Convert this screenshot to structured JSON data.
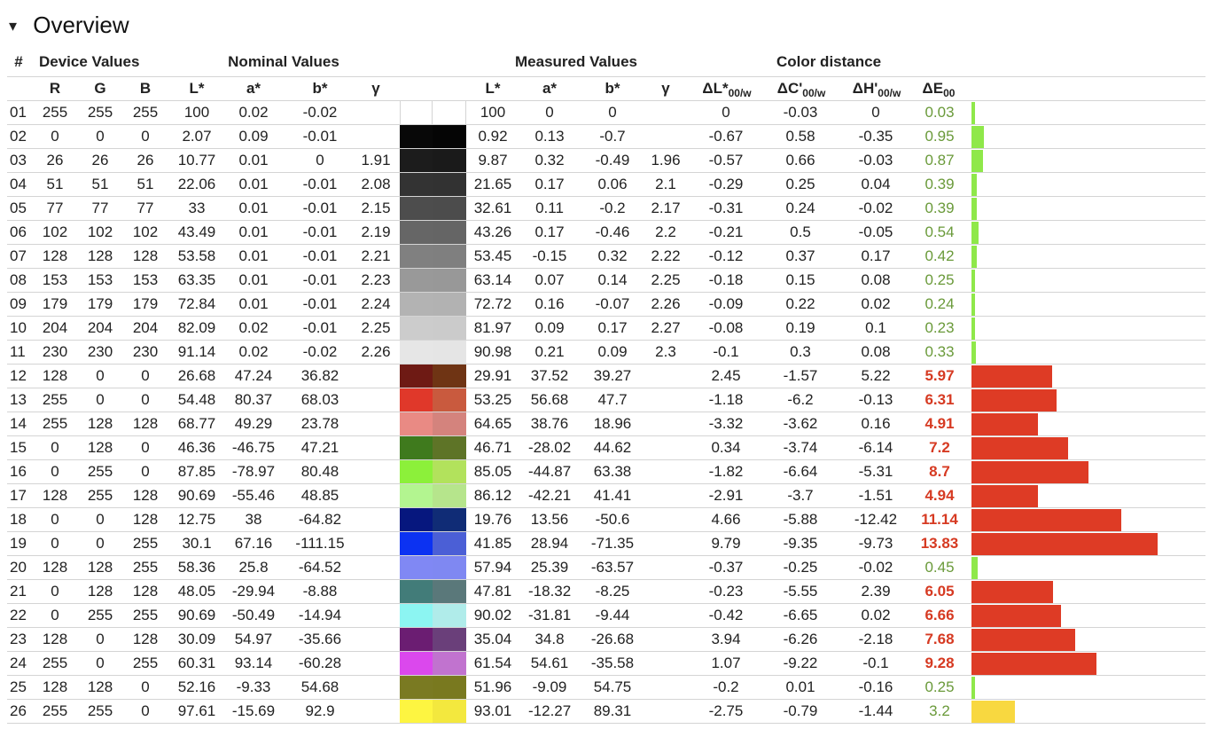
{
  "section": {
    "toggle": "▾",
    "title": "Overview"
  },
  "headers": {
    "num": "#",
    "device": "Device Values",
    "nominal": "Nominal Values",
    "measured": "Measured Values",
    "distance": "Color distance",
    "R": "R",
    "G": "G",
    "B": "B",
    "L": "L*",
    "a": "a*",
    "b": "b*",
    "gamma": "γ",
    "dL_main": "ΔL*",
    "dL_sub": "00/w",
    "dC_main": "ΔC'",
    "dC_sub": "00/w",
    "dH_main": "ΔH'",
    "dH_sub": "00/w",
    "dE_main": "ΔE",
    "dE_sub": "00"
  },
  "colors": {
    "good": "#6a9a3a",
    "bad": "#d63a22",
    "bar_good": "#8fe84a",
    "bar_bad": "#de3b25",
    "bar_warn": "#f8d840"
  },
  "rows": [
    {
      "num": "01",
      "R": "255",
      "G": "255",
      "B": "255",
      "nL": "100",
      "na": "0.02",
      "nb": "-0.02",
      "ng": "",
      "mL": "100",
      "ma": "0",
      "mb": "0",
      "mg": "",
      "dL": "0",
      "dC": "-0.03",
      "dH": "0",
      "dE": "0.03",
      "dEv": 0.03,
      "nom": "#ffffff",
      "meas": "#ffffff",
      "status": "good"
    },
    {
      "num": "02",
      "R": "0",
      "G": "0",
      "B": "0",
      "nL": "2.07",
      "na": "0.09",
      "nb": "-0.01",
      "ng": "",
      "mL": "0.92",
      "ma": "0.13",
      "mb": "-0.7",
      "mg": "",
      "dL": "-0.67",
      "dC": "0.58",
      "dH": "-0.35",
      "dE": "0.95",
      "dEv": 0.95,
      "nom": "#080808",
      "meas": "#050505",
      "status": "good"
    },
    {
      "num": "03",
      "R": "26",
      "G": "26",
      "B": "26",
      "nL": "10.77",
      "na": "0.01",
      "nb": "0",
      "ng": "1.91",
      "mL": "9.87",
      "ma": "0.32",
      "mb": "-0.49",
      "mg": "1.96",
      "dL": "-0.57",
      "dC": "0.66",
      "dH": "-0.03",
      "dE": "0.87",
      "dEv": 0.87,
      "nom": "#1c1c1c",
      "meas": "#1a1a1a",
      "status": "good"
    },
    {
      "num": "04",
      "R": "51",
      "G": "51",
      "B": "51",
      "nL": "22.06",
      "na": "0.01",
      "nb": "-0.01",
      "ng": "2.08",
      "mL": "21.65",
      "ma": "0.17",
      "mb": "0.06",
      "mg": "2.1",
      "dL": "-0.29",
      "dC": "0.25",
      "dH": "0.04",
      "dE": "0.39",
      "dEv": 0.39,
      "nom": "#333333",
      "meas": "#323232",
      "status": "good"
    },
    {
      "num": "05",
      "R": "77",
      "G": "77",
      "B": "77",
      "nL": "33",
      "na": "0.01",
      "nb": "-0.01",
      "ng": "2.15",
      "mL": "32.61",
      "ma": "0.11",
      "mb": "-0.2",
      "mg": "2.17",
      "dL": "-0.31",
      "dC": "0.24",
      "dH": "-0.02",
      "dE": "0.39",
      "dEv": 0.39,
      "nom": "#4d4d4d",
      "meas": "#4c4c4c",
      "status": "good"
    },
    {
      "num": "06",
      "R": "102",
      "G": "102",
      "B": "102",
      "nL": "43.49",
      "na": "0.01",
      "nb": "-0.01",
      "ng": "2.19",
      "mL": "43.26",
      "ma": "0.17",
      "mb": "-0.46",
      "mg": "2.2",
      "dL": "-0.21",
      "dC": "0.5",
      "dH": "-0.05",
      "dE": "0.54",
      "dEv": 0.54,
      "nom": "#666666",
      "meas": "#656565",
      "status": "good"
    },
    {
      "num": "07",
      "R": "128",
      "G": "128",
      "B": "128",
      "nL": "53.58",
      "na": "0.01",
      "nb": "-0.01",
      "ng": "2.21",
      "mL": "53.45",
      "ma": "-0.15",
      "mb": "0.32",
      "mg": "2.22",
      "dL": "-0.12",
      "dC": "0.37",
      "dH": "0.17",
      "dE": "0.42",
      "dEv": 0.42,
      "nom": "#808080",
      "meas": "#7f7f7f",
      "status": "good"
    },
    {
      "num": "08",
      "R": "153",
      "G": "153",
      "B": "153",
      "nL": "63.35",
      "na": "0.01",
      "nb": "-0.01",
      "ng": "2.23",
      "mL": "63.14",
      "ma": "0.07",
      "mb": "0.14",
      "mg": "2.25",
      "dL": "-0.18",
      "dC": "0.15",
      "dH": "0.08",
      "dE": "0.25",
      "dEv": 0.25,
      "nom": "#999999",
      "meas": "#989898",
      "status": "good"
    },
    {
      "num": "09",
      "R": "179",
      "G": "179",
      "B": "179",
      "nL": "72.84",
      "na": "0.01",
      "nb": "-0.01",
      "ng": "2.24",
      "mL": "72.72",
      "ma": "0.16",
      "mb": "-0.07",
      "mg": "2.26",
      "dL": "-0.09",
      "dC": "0.22",
      "dH": "0.02",
      "dE": "0.24",
      "dEv": 0.24,
      "nom": "#b3b3b3",
      "meas": "#b2b2b2",
      "status": "good"
    },
    {
      "num": "10",
      "R": "204",
      "G": "204",
      "B": "204",
      "nL": "82.09",
      "na": "0.02",
      "nb": "-0.01",
      "ng": "2.25",
      "mL": "81.97",
      "ma": "0.09",
      "mb": "0.17",
      "mg": "2.27",
      "dL": "-0.08",
      "dC": "0.19",
      "dH": "0.1",
      "dE": "0.23",
      "dEv": 0.23,
      "nom": "#cccccc",
      "meas": "#cbcbcb",
      "status": "good"
    },
    {
      "num": "11",
      "R": "230",
      "G": "230",
      "B": "230",
      "nL": "91.14",
      "na": "0.02",
      "nb": "-0.02",
      "ng": "2.26",
      "mL": "90.98",
      "ma": "0.21",
      "mb": "0.09",
      "mg": "2.3",
      "dL": "-0.1",
      "dC": "0.3",
      "dH": "0.08",
      "dE": "0.33",
      "dEv": 0.33,
      "nom": "#e6e6e6",
      "meas": "#e5e5e5",
      "status": "good"
    },
    {
      "num": "12",
      "R": "128",
      "G": "0",
      "B": "0",
      "nL": "26.68",
      "na": "47.24",
      "nb": "36.82",
      "ng": "",
      "mL": "29.91",
      "ma": "37.52",
      "mb": "39.27",
      "mg": "",
      "dL": "2.45",
      "dC": "-1.57",
      "dH": "5.22",
      "dE": "5.97",
      "dEv": 5.97,
      "nom": "#6e1a14",
      "meas": "#6f3414",
      "status": "bad"
    },
    {
      "num": "13",
      "R": "255",
      "G": "0",
      "B": "0",
      "nL": "54.48",
      "na": "80.37",
      "nb": "68.03",
      "ng": "",
      "mL": "53.25",
      "ma": "56.68",
      "mb": "47.7",
      "mg": "",
      "dL": "-1.18",
      "dC": "-6.2",
      "dH": "-0.13",
      "dE": "6.31",
      "dEv": 6.31,
      "nom": "#e0382a",
      "meas": "#c95a3e",
      "status": "bad"
    },
    {
      "num": "14",
      "R": "255",
      "G": "128",
      "B": "128",
      "nL": "68.77",
      "na": "49.29",
      "nb": "23.78",
      "ng": "",
      "mL": "64.65",
      "ma": "38.76",
      "mb": "18.96",
      "mg": "",
      "dL": "-3.32",
      "dC": "-3.62",
      "dH": "0.16",
      "dE": "4.91",
      "dEv": 4.91,
      "nom": "#e98a84",
      "meas": "#d4837d",
      "status": "bad"
    },
    {
      "num": "15",
      "R": "0",
      "G": "128",
      "B": "0",
      "nL": "46.36",
      "na": "-46.75",
      "nb": "47.21",
      "ng": "",
      "mL": "46.71",
      "ma": "-28.02",
      "mb": "44.62",
      "mg": "",
      "dL": "0.34",
      "dC": "-3.74",
      "dH": "-6.14",
      "dE": "7.2",
      "dEv": 7.2,
      "nom": "#3f7a1d",
      "meas": "#5e7427",
      "status": "bad"
    },
    {
      "num": "16",
      "R": "0",
      "G": "255",
      "B": "0",
      "nL": "87.85",
      "na": "-78.97",
      "nb": "80.48",
      "ng": "",
      "mL": "85.05",
      "ma": "-44.87",
      "mb": "63.38",
      "mg": "",
      "dL": "-1.82",
      "dC": "-6.64",
      "dH": "-5.31",
      "dE": "8.7",
      "dEv": 8.7,
      "nom": "#8cf03a",
      "meas": "#b2e25c",
      "status": "bad"
    },
    {
      "num": "17",
      "R": "128",
      "G": "255",
      "B": "128",
      "nL": "90.69",
      "na": "-55.46",
      "nb": "48.85",
      "ng": "",
      "mL": "86.12",
      "ma": "-42.21",
      "mb": "41.41",
      "mg": "",
      "dL": "-2.91",
      "dC": "-3.7",
      "dH": "-1.51",
      "dE": "4.94",
      "dEv": 4.94,
      "nom": "#b3f590",
      "meas": "#b6e58c",
      "status": "bad"
    },
    {
      "num": "18",
      "R": "0",
      "G": "0",
      "B": "128",
      "nL": "12.75",
      "na": "38",
      "nb": "-64.82",
      "ng": "",
      "mL": "19.76",
      "ma": "13.56",
      "mb": "-50.6",
      "mg": "",
      "dL": "4.66",
      "dC": "-5.88",
      "dH": "-12.42",
      "dE": "11.14",
      "dEv": 11.14,
      "nom": "#06177e",
      "meas": "#102c76",
      "status": "bad"
    },
    {
      "num": "19",
      "R": "0",
      "G": "0",
      "B": "255",
      "nL": "30.1",
      "na": "67.16",
      "nb": "-111.15",
      "ng": "",
      "mL": "41.85",
      "ma": "28.94",
      "mb": "-71.35",
      "mg": "",
      "dL": "9.79",
      "dC": "-9.35",
      "dH": "-9.73",
      "dE": "13.83",
      "dEv": 13.83,
      "nom": "#0c32f2",
      "meas": "#4b5fd6",
      "status": "bad"
    },
    {
      "num": "20",
      "R": "128",
      "G": "128",
      "B": "255",
      "nL": "58.36",
      "na": "25.8",
      "nb": "-64.52",
      "ng": "",
      "mL": "57.94",
      "ma": "25.39",
      "mb": "-63.57",
      "mg": "",
      "dL": "-0.37",
      "dC": "-0.25",
      "dH": "-0.02",
      "dE": "0.45",
      "dEv": 0.45,
      "nom": "#8088f4",
      "meas": "#7f88f2",
      "status": "good"
    },
    {
      "num": "21",
      "R": "0",
      "G": "128",
      "B": "128",
      "nL": "48.05",
      "na": "-29.94",
      "nb": "-8.88",
      "ng": "",
      "mL": "47.81",
      "ma": "-18.32",
      "mb": "-8.25",
      "mg": "",
      "dL": "-0.23",
      "dC": "-5.55",
      "dH": "2.39",
      "dE": "6.05",
      "dEv": 6.05,
      "nom": "#427c79",
      "meas": "#5a787a",
      "status": "bad"
    },
    {
      "num": "22",
      "R": "0",
      "G": "255",
      "B": "255",
      "nL": "90.69",
      "na": "-50.49",
      "nb": "-14.94",
      "ng": "",
      "mL": "90.02",
      "ma": "-31.81",
      "mb": "-9.44",
      "mg": "",
      "dL": "-0.42",
      "dC": "-6.65",
      "dH": "0.02",
      "dE": "6.66",
      "dEv": 6.66,
      "nom": "#8cf5f2",
      "meas": "#b0ecea",
      "status": "bad"
    },
    {
      "num": "23",
      "R": "128",
      "G": "0",
      "B": "128",
      "nL": "30.09",
      "na": "54.97",
      "nb": "-35.66",
      "ng": "",
      "mL": "35.04",
      "ma": "34.8",
      "mb": "-26.68",
      "mg": "",
      "dL": "3.94",
      "dC": "-6.26",
      "dH": "-2.18",
      "dE": "7.68",
      "dEv": 7.68,
      "nom": "#6b1d72",
      "meas": "#6a3f7a",
      "status": "bad"
    },
    {
      "num": "24",
      "R": "255",
      "G": "0",
      "B": "255",
      "nL": "60.31",
      "na": "93.14",
      "nb": "-60.28",
      "ng": "",
      "mL": "61.54",
      "ma": "54.61",
      "mb": "-35.58",
      "mg": "",
      "dL": "1.07",
      "dC": "-9.22",
      "dH": "-0.1",
      "dE": "9.28",
      "dEv": 9.28,
      "nom": "#db48ed",
      "meas": "#c173cf",
      "status": "bad"
    },
    {
      "num": "25",
      "R": "128",
      "G": "128",
      "B": "0",
      "nL": "52.16",
      "na": "-9.33",
      "nb": "54.68",
      "ng": "",
      "mL": "51.96",
      "ma": "-9.09",
      "mb": "54.75",
      "mg": "",
      "dL": "-0.2",
      "dC": "0.01",
      "dH": "-0.16",
      "dE": "0.25",
      "dEv": 0.25,
      "nom": "#7a7a22",
      "meas": "#79791f",
      "status": "good"
    },
    {
      "num": "26",
      "R": "255",
      "G": "255",
      "B": "0",
      "nL": "97.61",
      "na": "-15.69",
      "nb": "92.9",
      "ng": "",
      "mL": "93.01",
      "ma": "-12.27",
      "mb": "89.31",
      "mg": "",
      "dL": "-2.75",
      "dC": "-0.79",
      "dH": "-1.44",
      "dE": "3.2",
      "dEv": 3.2,
      "nom": "#fdf541",
      "meas": "#f3e83e",
      "status": "warn"
    }
  ]
}
